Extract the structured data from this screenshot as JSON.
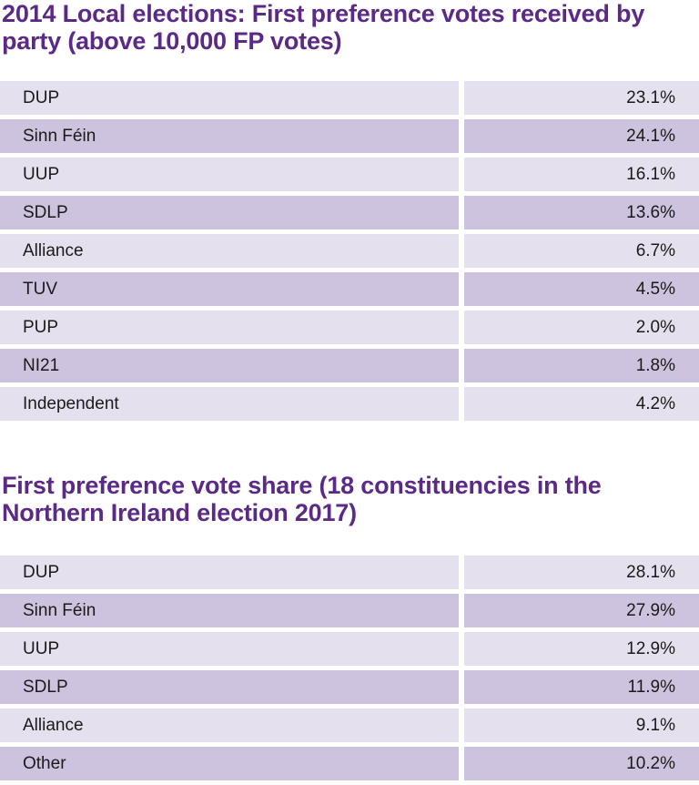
{
  "tables": [
    {
      "title": "2014 Local elections: First preference votes received by party (above 10,000 FP votes)",
      "rows": [
        {
          "party": "DUP",
          "value": "23.1%"
        },
        {
          "party": "Sinn Féin",
          "value": "24.1%"
        },
        {
          "party": "UUP",
          "value": "16.1%"
        },
        {
          "party": "SDLP",
          "value": "13.6%"
        },
        {
          "party": "Alliance",
          "value": "6.7%"
        },
        {
          "party": "TUV",
          "value": "4.5%"
        },
        {
          "party": "PUP",
          "value": "2.0%"
        },
        {
          "party": "NI21",
          "value": "1.8%"
        },
        {
          "party": "Independent",
          "value": "4.2%"
        }
      ]
    },
    {
      "title": "First preference vote share (18 constituencies in the Northern Ireland election 2017)",
      "rows": [
        {
          "party": "DUP",
          "value": "28.1%"
        },
        {
          "party": "Sinn Féin",
          "value": "27.9%"
        },
        {
          "party": "UUP",
          "value": "12.9%"
        },
        {
          "party": "SDLP",
          "value": "11.9%"
        },
        {
          "party": "Alliance",
          "value": "9.1%"
        },
        {
          "party": "Other",
          "value": "10.2%"
        }
      ]
    }
  ],
  "colors": {
    "title": "#5b2a86",
    "row_light": "#e5e0ee",
    "row_dark": "#cdc3df",
    "text": "#1a1a1a"
  }
}
